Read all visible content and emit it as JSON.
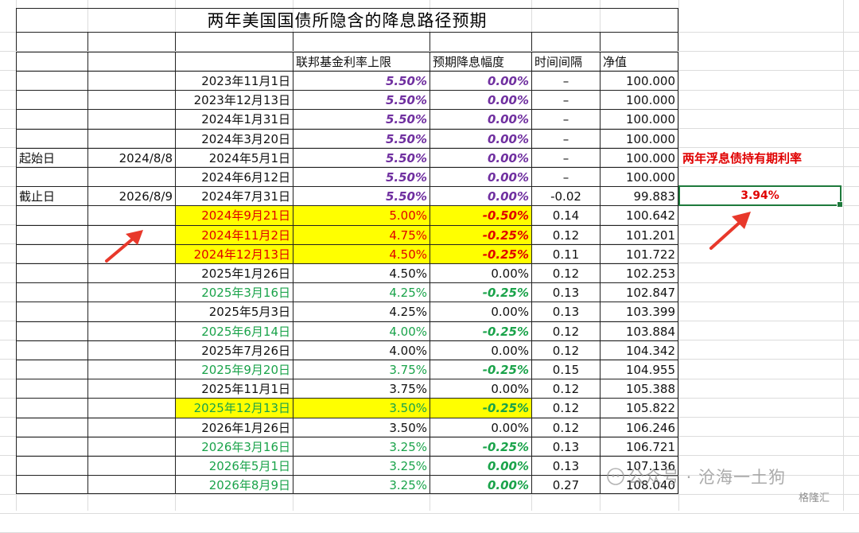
{
  "title": "两年美国国债所隐含的降息路径预期",
  "headers": {
    "fed_rate": "联邦基金利率上限",
    "expected_cut": "预期降息幅度",
    "interval": "时间间隔",
    "nav": "净值"
  },
  "side_labels": {
    "start_label": "起始日",
    "start_date": "2024/8/8",
    "end_label": "截止日",
    "end_date": "2026/8/9"
  },
  "rows": [
    {
      "date": "2023年11月1日",
      "rate": "5.50%",
      "cut": "0.00%",
      "interval": "–",
      "nav": "100.000",
      "style": "purple",
      "highlight": false
    },
    {
      "date": "2023年12月13日",
      "rate": "5.50%",
      "cut": "0.00%",
      "interval": "–",
      "nav": "100.000",
      "style": "purple",
      "highlight": false
    },
    {
      "date": "2024年1月31日",
      "rate": "5.50%",
      "cut": "0.00%",
      "interval": "–",
      "nav": "100.000",
      "style": "purple",
      "highlight": false
    },
    {
      "date": "2024年3月20日",
      "rate": "5.50%",
      "cut": "0.00%",
      "interval": "–",
      "nav": "100.000",
      "style": "purple",
      "highlight": false
    },
    {
      "date": "2024年5月1日",
      "rate": "5.50%",
      "cut": "0.00%",
      "interval": "–",
      "nav": "100.000",
      "style": "purple",
      "highlight": false
    },
    {
      "date": "2024年6月12日",
      "rate": "5.50%",
      "cut": "0.00%",
      "interval": "–",
      "nav": "100.000",
      "style": "purple",
      "highlight": false
    },
    {
      "date": "2024年7月31日",
      "rate": "5.50%",
      "cut": "0.00%",
      "interval": "-0.02",
      "nav": "99.883",
      "style": "purple",
      "highlight": false
    },
    {
      "date": "2024年9月21日",
      "rate": "5.00%",
      "cut": "-0.50%",
      "interval": "0.14",
      "nav": "100.642",
      "style": "red",
      "highlight": true
    },
    {
      "date": "2024年11月2日",
      "rate": "4.75%",
      "cut": "-0.25%",
      "interval": "0.12",
      "nav": "101.201",
      "style": "red",
      "highlight": true
    },
    {
      "date": "2024年12月13日",
      "rate": "4.50%",
      "cut": "-0.25%",
      "interval": "0.11",
      "nav": "101.722",
      "style": "red",
      "highlight": true
    },
    {
      "date": "2025年1月26日",
      "rate": "4.50%",
      "cut": "0.00%",
      "interval": "0.12",
      "nav": "102.253",
      "style": "black",
      "highlight": false
    },
    {
      "date": "2025年3月16日",
      "rate": "4.25%",
      "cut": "-0.25%",
      "interval": "0.13",
      "nav": "102.847",
      "style": "green",
      "highlight": false
    },
    {
      "date": "2025年5月3日",
      "rate": "4.25%",
      "cut": "0.00%",
      "interval": "0.13",
      "nav": "103.399",
      "style": "black",
      "highlight": false
    },
    {
      "date": "2025年6月14日",
      "rate": "4.00%",
      "cut": "-0.25%",
      "interval": "0.12",
      "nav": "103.884",
      "style": "green",
      "highlight": false
    },
    {
      "date": "2025年7月26日",
      "rate": "4.00%",
      "cut": "0.00%",
      "interval": "0.12",
      "nav": "104.342",
      "style": "black",
      "highlight": false
    },
    {
      "date": "2025年9月20日",
      "rate": "3.75%",
      "cut": "-0.25%",
      "interval": "0.15",
      "nav": "104.955",
      "style": "green",
      "highlight": false
    },
    {
      "date": "2025年11月1日",
      "rate": "3.75%",
      "cut": "0.00%",
      "interval": "0.12",
      "nav": "105.388",
      "style": "black",
      "highlight": false
    },
    {
      "date": "2025年12月13日",
      "rate": "3.50%",
      "cut": "-0.25%",
      "interval": "0.12",
      "nav": "105.822",
      "style": "green",
      "highlight": true
    },
    {
      "date": "2026年1月26日",
      "rate": "3.50%",
      "cut": "0.00%",
      "interval": "0.12",
      "nav": "106.246",
      "style": "black",
      "highlight": false
    },
    {
      "date": "2026年3月16日",
      "rate": "3.25%",
      "cut": "-0.25%",
      "interval": "0.13",
      "nav": "106.721",
      "style": "green",
      "highlight": false
    },
    {
      "date": "2026年5月1日",
      "rate": "3.25%",
      "cut": "0.00%",
      "interval": "0.13",
      "nav": "107.136",
      "style": "green",
      "highlight": false
    },
    {
      "date": "2026年8月9日",
      "rate": "3.25%",
      "cut": "0.00%",
      "interval": "0.27",
      "nav": "108.040",
      "style": "green",
      "highlight": false
    }
  ],
  "side_note": {
    "label": "两年浮息债持有期利率",
    "value": "3.94%"
  },
  "watermark": {
    "text": "公众号 · 沧海一土狗",
    "logo": "格隆汇"
  },
  "colors": {
    "purple": "#7030a0",
    "red": "#e00000",
    "green": "#1aa34a",
    "highlight": "#ffff00",
    "selection_border": "#1e7a3c",
    "arrow": "#e8382b"
  },
  "icons": [
    "wechat-icon",
    "arrow-icon"
  ]
}
